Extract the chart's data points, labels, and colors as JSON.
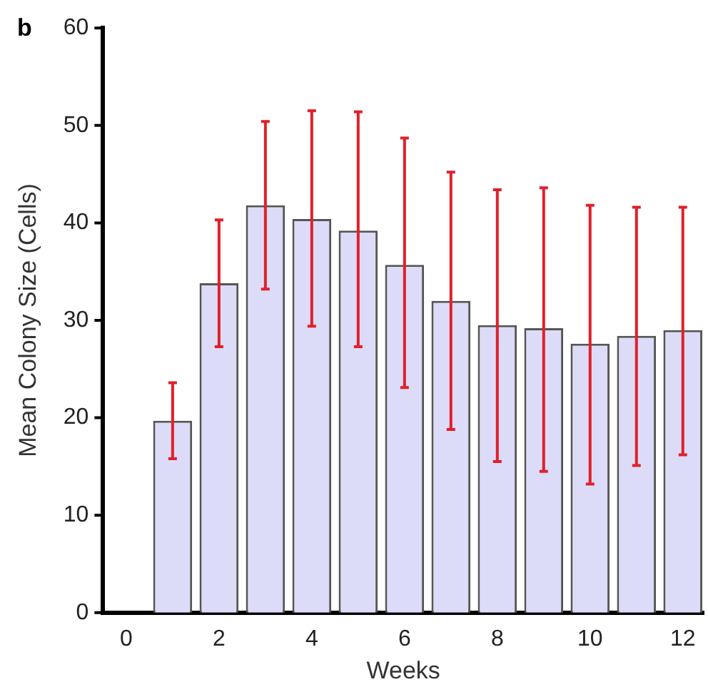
{
  "chart_data": {
    "type": "bar",
    "xlabel": "Weeks",
    "ylabel": "Mean Colony Size (Cells)",
    "annotations": [
      "b"
    ],
    "x": [
      1,
      2,
      3,
      4,
      5,
      6,
      7,
      8,
      9,
      10,
      11,
      12
    ],
    "values": [
      19.7,
      33.8,
      41.8,
      40.4,
      39.2,
      35.7,
      32.0,
      29.5,
      29.2,
      27.6,
      28.4,
      29.0
    ],
    "errors": [
      [
        15.8,
        23.6
      ],
      [
        27.3,
        40.3
      ],
      [
        33.2,
        50.4
      ],
      [
        29.4,
        51.5
      ],
      [
        27.3,
        51.4
      ],
      [
        23.1,
        48.7
      ],
      [
        18.8,
        45.2
      ],
      [
        15.5,
        43.4
      ],
      [
        14.5,
        43.6
      ],
      [
        13.2,
        41.8
      ],
      [
        15.1,
        41.6
      ],
      [
        16.2,
        41.6
      ]
    ],
    "color": "#dcdcf8",
    "xlim": [
      -0.5,
      12.45
    ],
    "xticks": [
      0,
      2,
      4,
      6,
      8,
      10,
      12
    ],
    "ylim": [
      0,
      60
    ],
    "yticks": [
      0,
      10,
      20,
      30,
      40,
      50,
      60
    ],
    "grid": false,
    "legend": false
  }
}
